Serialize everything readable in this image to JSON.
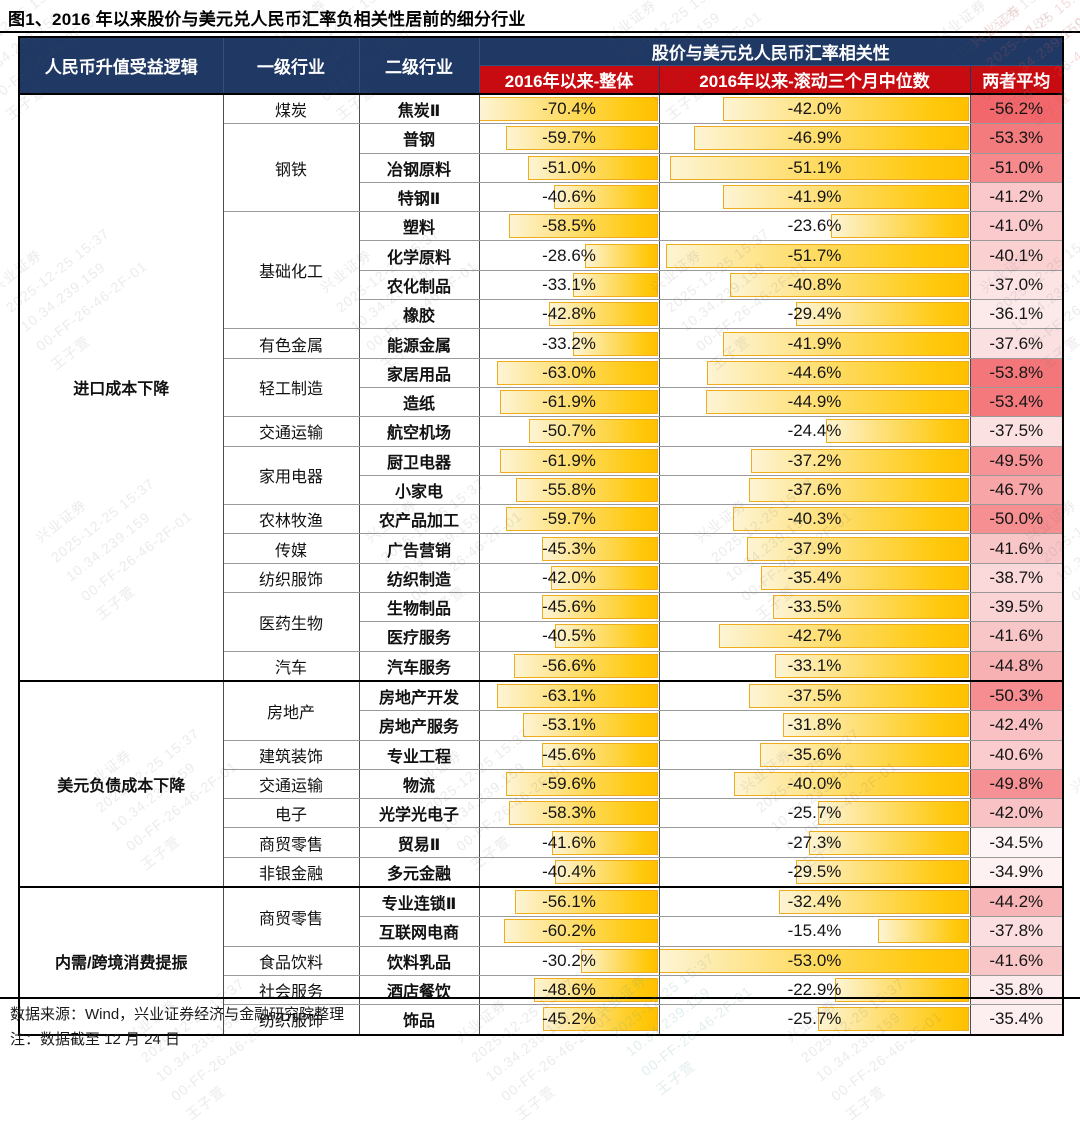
{
  "title": "图1、2016 年以来股价与美元兑人民币汇率负相关性居前的细分行业",
  "header": {
    "logic": "人民币升值受益逻辑",
    "industry_l1": "一级行业",
    "industry_l2": "二级行业",
    "correlation_group": "股价与美元兑人民币汇率相关性",
    "col_overall": "2016年以来-整体",
    "col_rolling": "2016年以来-滚动三个月中位数",
    "col_avg": "两者平均"
  },
  "footer": {
    "source": "数据来源：Wind，兴业证券经济与金融研究院整理",
    "note": "注：数据截至 12 月 24 日"
  },
  "watermark": {
    "lines": [
      "兴业证券",
      "2025-12-25 15:37",
      "10.34.239.159",
      "00-FF-26-46-2F-01",
      "王子萱"
    ]
  },
  "colors": {
    "header_navy": "#1F3864",
    "header_red": "#C80B10",
    "bar_gold": "#FFC000",
    "bar_border": "#EFAD1E",
    "scale_low_rgb": [
      253,
      244,
      245
    ],
    "scale_high_rgb": [
      242,
      103,
      107
    ]
  },
  "chart_data": {
    "type": "table",
    "title": "2016年以来股价与美元兑人民币汇率负相关性居前的细分行业",
    "columns": [
      "人民币升值受益逻辑",
      "一级行业",
      "二级行业",
      "2016年以来-整体",
      "2016年以来-滚动三个月中位数",
      "两者平均"
    ],
    "value_format": "percent_one_decimal",
    "bar_columns": [
      "overall",
      "rolling"
    ],
    "color_scale_column": "avg",
    "rows": [
      {
        "group": "进口成本下降",
        "group_span": 20,
        "l1": "煤炭",
        "l1_span": 1,
        "l2": "焦炭Ⅱ",
        "overall": -70.4,
        "rolling": -42.0,
        "avg": -56.2
      },
      {
        "l1": "钢铁",
        "l1_span": 3,
        "l2": "普钢",
        "overall": -59.7,
        "rolling": -46.9,
        "avg": -53.3
      },
      {
        "l2": "冶钢原料",
        "overall": -51.0,
        "rolling": -51.1,
        "avg": -51.0
      },
      {
        "l2": "特钢Ⅱ",
        "overall": -40.6,
        "rolling": -41.9,
        "avg": -41.2
      },
      {
        "l1": "基础化工",
        "l1_span": 4,
        "l2": "塑料",
        "overall": -58.5,
        "rolling": -23.6,
        "avg": -41.0
      },
      {
        "l2": "化学原料",
        "overall": -28.6,
        "rolling": -51.7,
        "avg": -40.1
      },
      {
        "l2": "农化制品",
        "overall": -33.1,
        "rolling": -40.8,
        "avg": -37.0
      },
      {
        "l2": "橡胶",
        "overall": -42.8,
        "rolling": -29.4,
        "avg": -36.1
      },
      {
        "l1": "有色金属",
        "l1_span": 1,
        "l2": "能源金属",
        "overall": -33.2,
        "rolling": -41.9,
        "avg": -37.6
      },
      {
        "l1": "轻工制造",
        "l1_span": 2,
        "l2": "家居用品",
        "overall": -63.0,
        "rolling": -44.6,
        "avg": -53.8
      },
      {
        "l2": "造纸",
        "overall": -61.9,
        "rolling": -44.9,
        "avg": -53.4
      },
      {
        "l1": "交通运输",
        "l1_span": 1,
        "l2": "航空机场",
        "overall": -50.7,
        "rolling": -24.4,
        "avg": -37.5
      },
      {
        "l1": "家用电器",
        "l1_span": 2,
        "l2": "厨卫电器",
        "overall": -61.9,
        "rolling": -37.2,
        "avg": -49.5
      },
      {
        "l2": "小家电",
        "overall": -55.8,
        "rolling": -37.6,
        "avg": -46.7
      },
      {
        "l1": "农林牧渔",
        "l1_span": 1,
        "l2": "农产品加工",
        "overall": -59.7,
        "rolling": -40.3,
        "avg": -50.0
      },
      {
        "l1": "传媒",
        "l1_span": 1,
        "l2": "广告营销",
        "overall": -45.3,
        "rolling": -37.9,
        "avg": -41.6
      },
      {
        "l1": "纺织服饰",
        "l1_span": 1,
        "l2": "纺织制造",
        "overall": -42.0,
        "rolling": -35.4,
        "avg": -38.7
      },
      {
        "l1": "医药生物",
        "l1_span": 2,
        "l2": "生物制品",
        "overall": -45.6,
        "rolling": -33.5,
        "avg": -39.5
      },
      {
        "l2": "医疗服务",
        "overall": -40.5,
        "rolling": -42.7,
        "avg": -41.6
      },
      {
        "l1": "汽车",
        "l1_span": 1,
        "l2": "汽车服务",
        "overall": -56.6,
        "rolling": -33.1,
        "avg": -44.8
      },
      {
        "group": "美元负债成本下降",
        "group_span": 7,
        "l1": "房地产",
        "l1_span": 2,
        "l2": "房地产开发",
        "overall": -63.1,
        "rolling": -37.5,
        "avg": -50.3
      },
      {
        "l2": "房地产服务",
        "overall": -53.1,
        "rolling": -31.8,
        "avg": -42.4
      },
      {
        "l1": "建筑装饰",
        "l1_span": 1,
        "l2": "专业工程",
        "overall": -45.6,
        "rolling": -35.6,
        "avg": -40.6
      },
      {
        "l1": "交通运输",
        "l1_span": 1,
        "l2": "物流",
        "overall": -59.6,
        "rolling": -40.0,
        "avg": -49.8
      },
      {
        "l1": "电子",
        "l1_span": 1,
        "l2": "光学光电子",
        "overall": -58.3,
        "rolling": -25.7,
        "avg": -42.0
      },
      {
        "l1": "商贸零售",
        "l1_span": 1,
        "l2": "贸易Ⅱ",
        "overall": -41.6,
        "rolling": -27.3,
        "avg": -34.5
      },
      {
        "l1": "非银金融",
        "l1_span": 1,
        "l2": "多元金融",
        "overall": -40.4,
        "rolling": -29.5,
        "avg": -34.9
      },
      {
        "group": "内需/跨境消费提振",
        "group_span": 5,
        "l1": "商贸零售",
        "l1_span": 2,
        "l2": "专业连锁Ⅱ",
        "overall": -56.1,
        "rolling": -32.4,
        "avg": -44.2
      },
      {
        "l2": "互联网电商",
        "overall": -60.2,
        "rolling": -15.4,
        "avg": -37.8
      },
      {
        "l1": "食品饮料",
        "l1_span": 1,
        "l2": "饮料乳品",
        "overall": -30.2,
        "rolling": -53.0,
        "avg": -41.6
      },
      {
        "l1": "社会服务",
        "l1_span": 1,
        "l2": "酒店餐饮",
        "overall": -48.6,
        "rolling": -22.9,
        "avg": -35.8
      },
      {
        "l1": "纺织服饰",
        "l1_span": 1,
        "l2": "饰品",
        "overall": -45.2,
        "rolling": -25.7,
        "avg": -35.4
      }
    ]
  }
}
